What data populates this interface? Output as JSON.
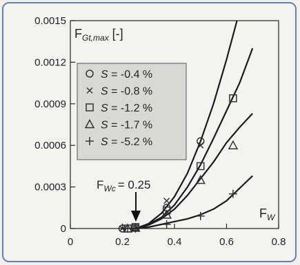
{
  "chart_data": {
    "type": "scatter",
    "title": "",
    "ylabel": {
      "main": "F",
      "sub": "Gt,max",
      "unit": " [-]"
    },
    "xlabel": {
      "main": "F",
      "sub": "W"
    },
    "xlim": [
      0,
      0.8
    ],
    "ylim": [
      0,
      0.0015
    ],
    "x_ticks": [
      0,
      0.2,
      0.4,
      0.6,
      0.8
    ],
    "x_tick_labels": [
      "0",
      "0.2",
      "0.4",
      "0.6",
      "0.8"
    ],
    "y_ticks": [
      0,
      0.0003,
      0.0006,
      0.0009,
      0.0012,
      0.0015
    ],
    "y_tick_labels": [
      "0",
      "0.0003",
      "0.0006",
      "0.0009",
      "0.0012",
      "0.0015"
    ],
    "grid": false,
    "legend_position": "upper-left",
    "annotation": {
      "main": "F",
      "sub": "Wc",
      "text": "= 0.25",
      "x": 0.25,
      "y": 0.0
    },
    "series": [
      {
        "name": "S = -0.4 %",
        "label_var": "S",
        "label_val": "= -0.4 %",
        "marker": "circle",
        "points": [
          [
            0.2,
            0.0
          ],
          [
            0.25,
            1e-05
          ],
          [
            0.37,
            0.00015
          ],
          [
            0.5,
            0.00063
          ]
        ],
        "curve": [
          [
            0.25,
            0.0
          ],
          [
            0.3,
            3.5e-05
          ],
          [
            0.35,
            0.00011
          ],
          [
            0.4,
            0.00023
          ],
          [
            0.45,
            0.0004
          ],
          [
            0.5,
            0.00063
          ],
          [
            0.55,
            0.0009
          ],
          [
            0.6,
            0.00122
          ],
          [
            0.64,
            0.00152
          ]
        ]
      },
      {
        "name": "S = -0.8 %",
        "label_var": "S",
        "label_val": "= -0.8 %",
        "marker": "x",
        "points": [
          [
            0.2,
            0.0
          ],
          [
            0.25,
            5e-06
          ],
          [
            0.37,
            0.0002
          ],
          [
            0.5,
            0.0006
          ]
        ],
        "curve": []
      },
      {
        "name": "S = -1.2 %",
        "label_var": "S",
        "label_val": "= -1.2 %",
        "marker": "square",
        "points": [
          [
            0.22,
            0.0
          ],
          [
            0.25,
            1e-05
          ],
          [
            0.37,
            0.00013
          ],
          [
            0.5,
            0.00045
          ],
          [
            0.625,
            0.00094
          ]
        ],
        "curve": [
          [
            0.25,
            0.0
          ],
          [
            0.3,
            3e-05
          ],
          [
            0.35,
            8e-05
          ],
          [
            0.4,
            0.00017
          ],
          [
            0.45,
            0.0003
          ],
          [
            0.5,
            0.00046
          ],
          [
            0.55,
            0.00065
          ],
          [
            0.6,
            0.00085
          ],
          [
            0.65,
            0.00105
          ],
          [
            0.7,
            0.0013
          ]
        ]
      },
      {
        "name": "S = -1.7 %",
        "label_var": "S",
        "label_val": "= -1.7 %",
        "marker": "triangle",
        "points": [
          [
            0.22,
            0.0
          ],
          [
            0.25,
            5e-06
          ],
          [
            0.37,
            0.0001
          ],
          [
            0.5,
            0.00035
          ],
          [
            0.625,
            0.0006
          ]
        ],
        "curve": [
          [
            0.25,
            0.0
          ],
          [
            0.3,
            2.5e-05
          ],
          [
            0.35,
            7e-05
          ],
          [
            0.4,
            0.00014
          ],
          [
            0.45,
            0.00024
          ],
          [
            0.5,
            0.00036
          ],
          [
            0.55,
            0.00048
          ],
          [
            0.6,
            0.00062
          ],
          [
            0.65,
            0.00073
          ],
          [
            0.7,
            0.00083
          ]
        ]
      },
      {
        "name": "S = -5.2 %",
        "label_var": "S",
        "label_val": "= -5.2 %",
        "marker": "plus",
        "points": [
          [
            0.22,
            0.0
          ],
          [
            0.25,
            0.0
          ],
          [
            0.37,
            3e-05
          ],
          [
            0.5,
            9e-05
          ],
          [
            0.625,
            0.00025
          ]
        ],
        "curve": [
          [
            0.25,
            0.0
          ],
          [
            0.3,
            1e-05
          ],
          [
            0.35,
            3e-05
          ],
          [
            0.4,
            5e-05
          ],
          [
            0.45,
            7e-05
          ],
          [
            0.5,
            0.0001
          ],
          [
            0.55,
            0.00014
          ],
          [
            0.6,
            0.0002
          ],
          [
            0.65,
            0.00029
          ],
          [
            0.7,
            0.00038
          ]
        ]
      }
    ]
  }
}
